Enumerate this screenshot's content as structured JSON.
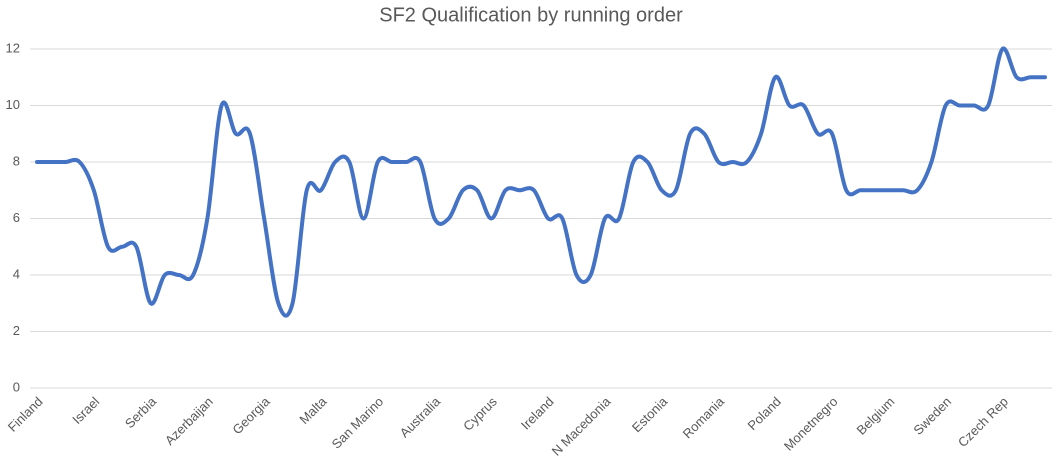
{
  "chart_data": {
    "type": "line",
    "title": "SF2 Qualification by running order",
    "categories": [
      "Finland",
      null,
      null,
      null,
      "Israel",
      null,
      null,
      null,
      "Serbia",
      null,
      null,
      null,
      "Azerbaijan",
      null,
      null,
      null,
      "Georgia",
      null,
      null,
      null,
      "Malta",
      null,
      null,
      null,
      "San Marino",
      null,
      null,
      null,
      "Australia",
      null,
      null,
      null,
      "Cyprus",
      null,
      null,
      null,
      "Ireland",
      null,
      null,
      null,
      "N Macedonia",
      null,
      null,
      null,
      "Estonia",
      null,
      null,
      null,
      "Romania",
      null,
      null,
      null,
      "Poland",
      null,
      null,
      null,
      "Monetnegro",
      null,
      null,
      null,
      "Belgium",
      null,
      null,
      null,
      "Sweden",
      null,
      null,
      null,
      "Czech Rep",
      null,
      null,
      null
    ],
    "values": [
      8,
      8,
      8,
      8,
      7,
      5,
      5,
      5,
      3,
      4,
      4,
      4,
      6,
      10,
      9,
      9,
      6,
      3,
      3,
      7,
      7,
      8,
      8,
      6,
      8,
      8,
      8,
      8,
      6,
      6,
      7,
      7,
      6,
      7,
      7,
      7,
      6,
      6,
      4,
      4,
      6,
      6,
      8,
      8,
      7,
      7,
      9,
      9,
      8,
      8,
      8,
      9,
      11,
      10,
      10,
      9,
      9,
      7,
      7,
      7,
      7,
      7,
      7,
      8,
      10,
      10,
      10,
      10,
      12,
      11,
      11,
      11
    ],
    "color": "#4472c4",
    "ylim": [
      0,
      12
    ],
    "yticks": [
      0,
      2,
      4,
      6,
      8,
      10,
      12
    ],
    "grid": true
  }
}
